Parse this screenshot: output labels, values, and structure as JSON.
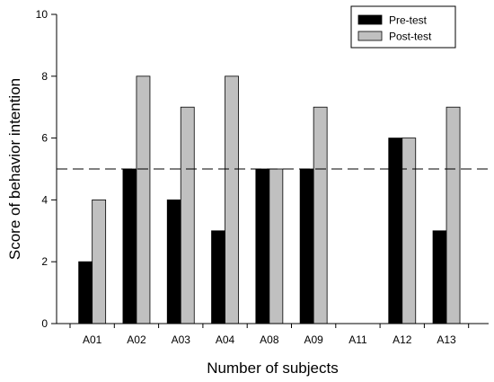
{
  "chart_data": {
    "type": "bar",
    "xlabel": "Number of subjects",
    "ylabel": "Score of behavior intention",
    "ylim": [
      0,
      10
    ],
    "yticks": [
      0,
      2,
      4,
      6,
      8,
      10
    ],
    "categories": [
      "A01",
      "A02",
      "A03",
      "A04",
      "A08",
      "A09",
      "A11",
      "A12",
      "A13"
    ],
    "series": [
      {
        "name": "Pre-test",
        "color": "#000000",
        "values": [
          2,
          5,
          4,
          3,
          5,
          5,
          0,
          6,
          3
        ]
      },
      {
        "name": "Post-test",
        "color": "#c0c0c0",
        "values": [
          4,
          8,
          7,
          8,
          5,
          7,
          0,
          6,
          7
        ]
      }
    ],
    "reference_line": {
      "y": 5,
      "style": "dashed"
    },
    "legend_position": "top-right",
    "grid": false
  }
}
